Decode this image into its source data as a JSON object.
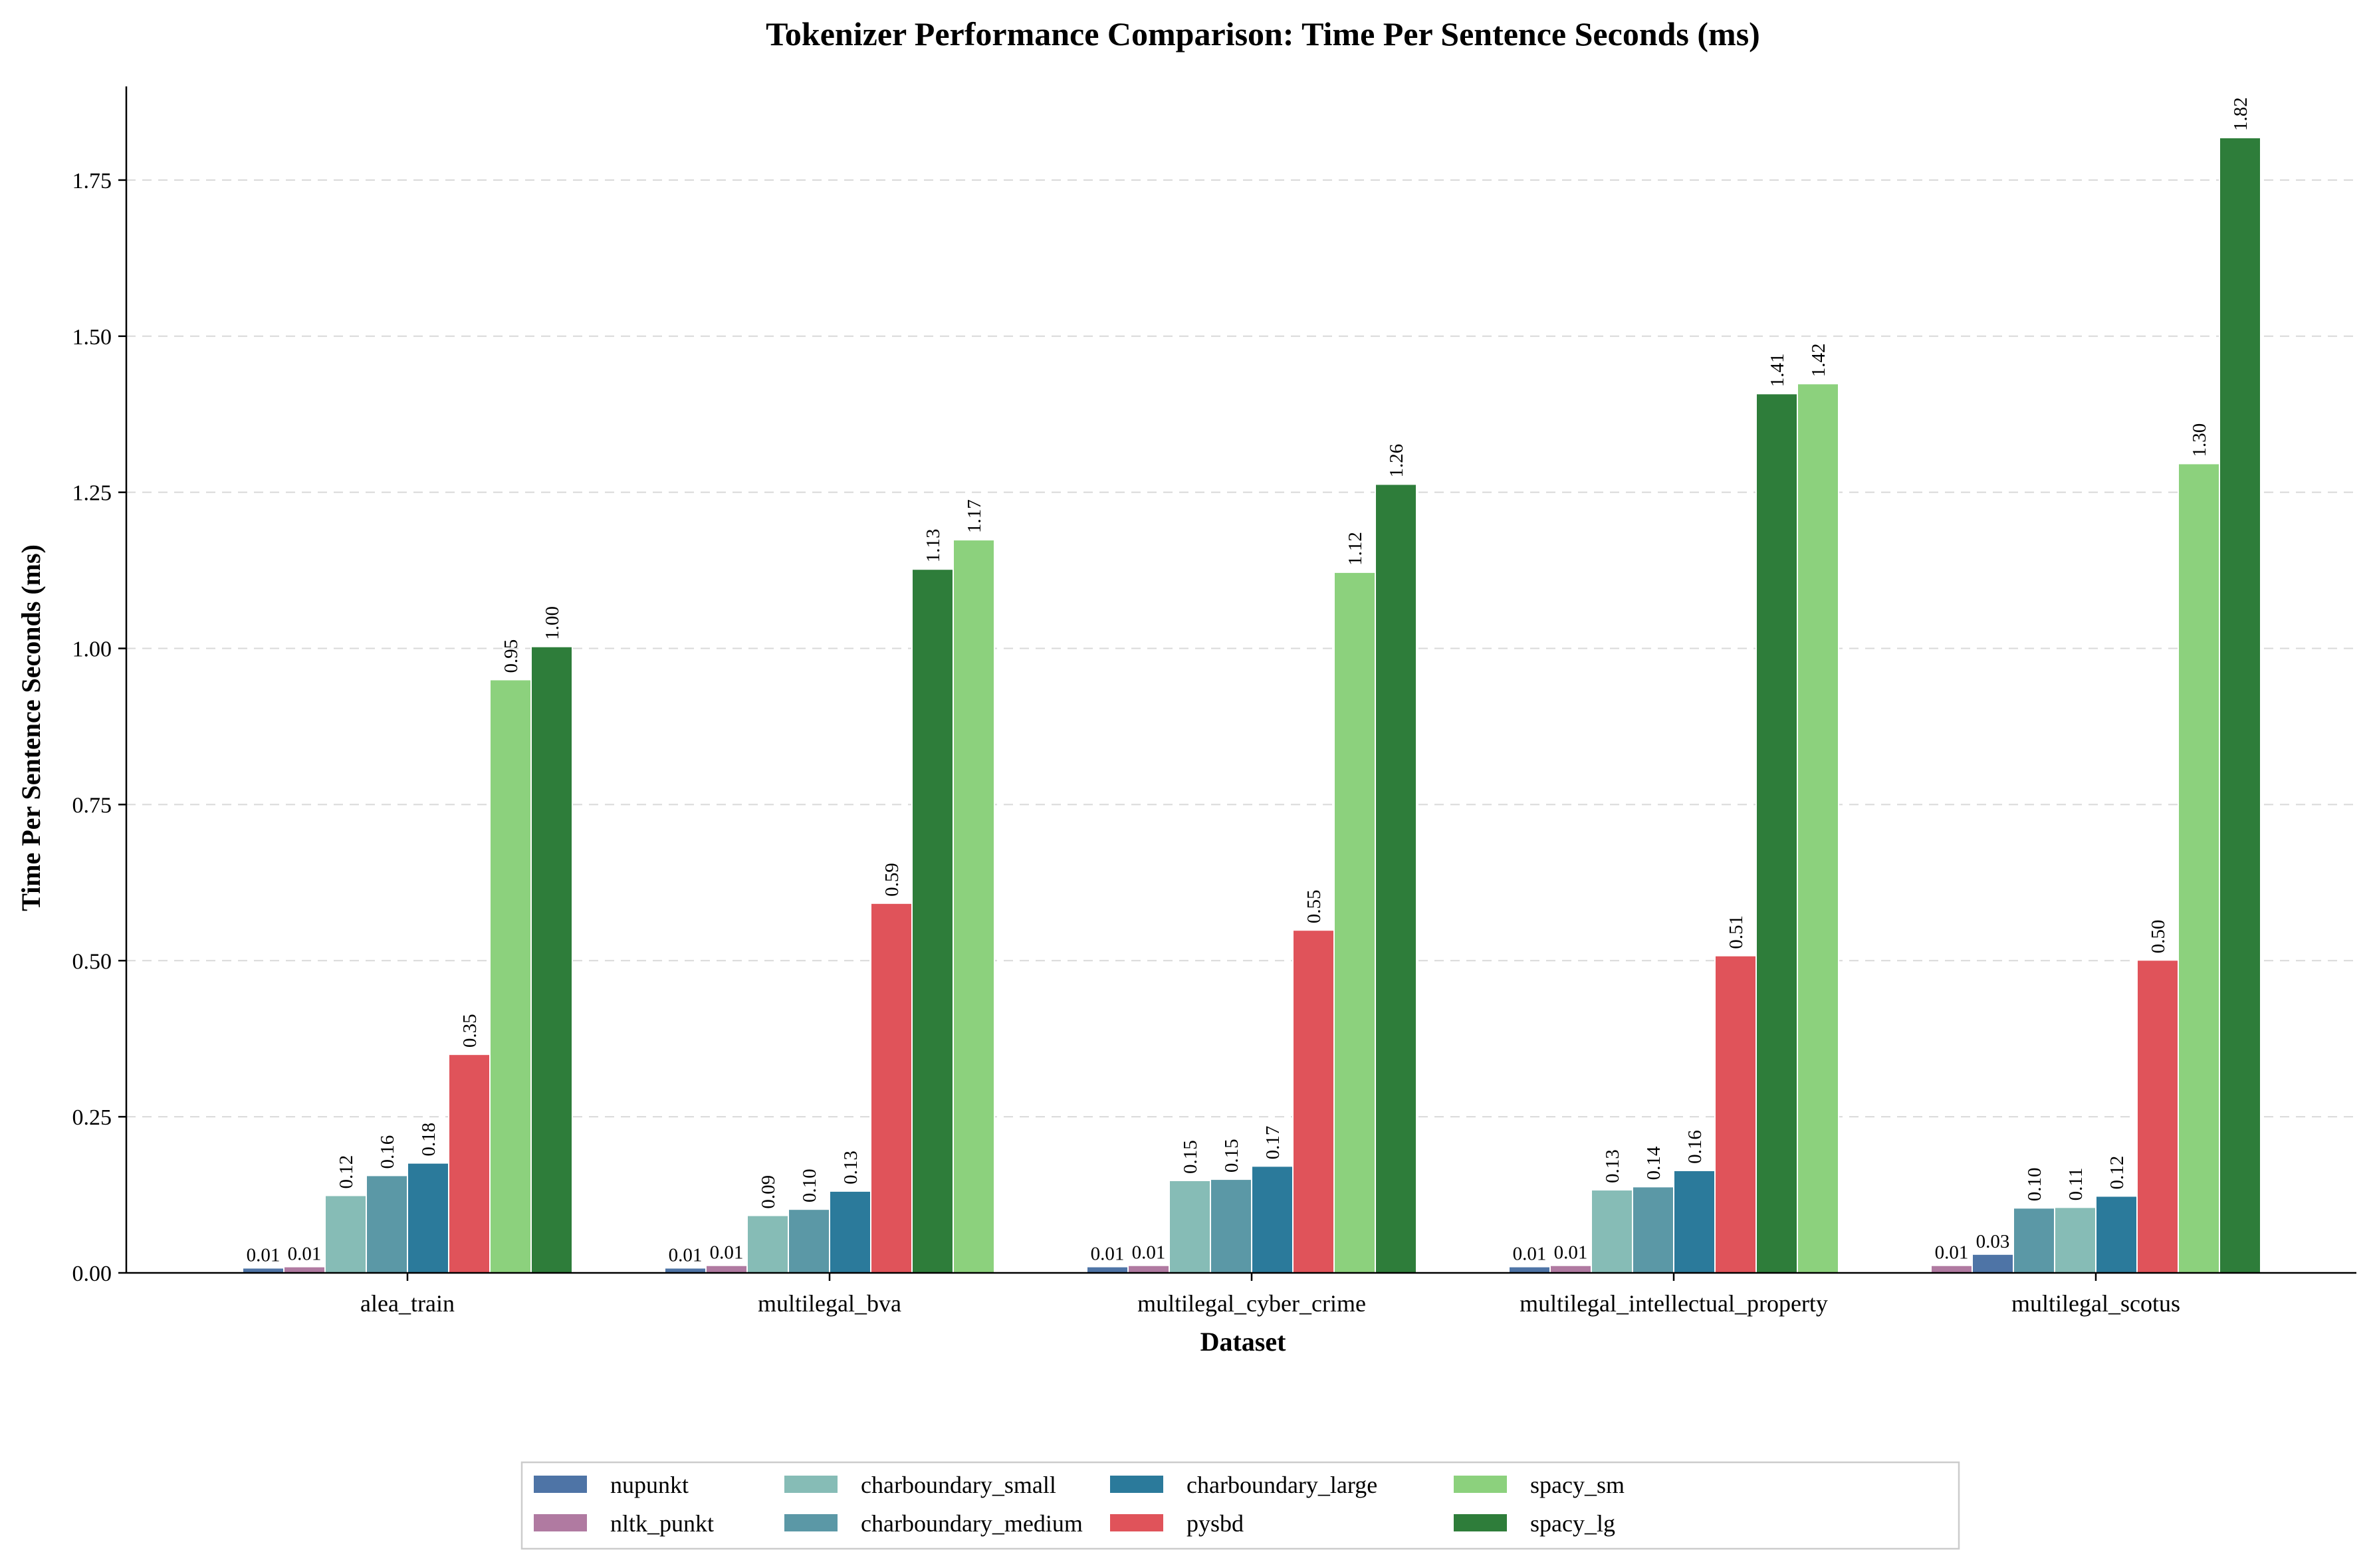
{
  "chart_data": {
    "type": "bar",
    "title": "Tokenizer Performance Comparison: Time Per Sentence Seconds (ms)",
    "xlabel": "Dataset",
    "ylabel": "Time Per Sentence Seconds (ms)",
    "ylim": [
      0,
      1.9
    ],
    "yticks": [
      "0.00",
      "0.25",
      "0.50",
      "0.75",
      "1.00",
      "1.25",
      "1.50",
      "1.75"
    ],
    "grid": "y-dashed",
    "legend_position": "bottom-center",
    "categories": [
      "alea_train",
      "multilegal_bva",
      "multilegal_cyber_crime",
      "multilegal_intellectual_property",
      "multilegal_scotus"
    ],
    "series": [
      {
        "name": "nupunkt",
        "color": "#4e74a6",
        "values": [
          0.008,
          0.008,
          0.01,
          0.01,
          0.03
        ],
        "labels": [
          "0.01",
          "0.01",
          "0.01",
          "0.01",
          "0.03"
        ]
      },
      {
        "name": "nltk_punkt",
        "color": "#b07aa1",
        "values": [
          0.01,
          0.012,
          0.012,
          0.012,
          0.012
        ],
        "labels": [
          "0.01",
          "0.01",
          "0.01",
          "0.01",
          "0.01"
        ]
      },
      {
        "name": "charboundary_small",
        "color": "#86bcb6",
        "values": [
          0.124,
          0.092,
          0.148,
          0.133,
          0.105
        ],
        "labels": [
          "0.12",
          "0.09",
          "0.15",
          "0.13",
          "0.11"
        ]
      },
      {
        "name": "charboundary_medium",
        "color": "#5b98a6",
        "values": [
          0.156,
          0.102,
          0.15,
          0.138,
          0.104
        ],
        "labels": [
          "0.16",
          "0.10",
          "0.15",
          "0.14",
          "0.10"
        ]
      },
      {
        "name": "charboundary_large",
        "color": "#2b7a9b",
        "values": [
          0.176,
          0.131,
          0.171,
          0.164,
          0.123
        ],
        "labels": [
          "0.18",
          "0.13",
          "0.17",
          "0.16",
          "0.12"
        ]
      },
      {
        "name": "pysbd",
        "color": "#e0535a",
        "values": [
          0.35,
          0.592,
          0.549,
          0.508,
          0.501
        ],
        "labels": [
          "0.35",
          "0.59",
          "0.55",
          "0.51",
          "0.50"
        ]
      },
      {
        "name": "spacy_sm",
        "color": "#8cd17d",
        "values": [
          0.95,
          1.174,
          1.122,
          1.424,
          1.296
        ],
        "labels": [
          "0.95",
          "1.17",
          "1.12",
          "1.42",
          "1.30"
        ]
      },
      {
        "name": "spacy_lg",
        "color": "#2e7d3a",
        "values": [
          1.003,
          1.127,
          1.263,
          1.408,
          1.818
        ],
        "labels": [
          "1.00",
          "1.13",
          "1.26",
          "1.41",
          "1.82"
        ]
      }
    ],
    "bar_order": [
      [
        0,
        1,
        2,
        3,
        4,
        5,
        6,
        7
      ],
      [
        0,
        1,
        2,
        3,
        4,
        5,
        7,
        6
      ],
      [
        0,
        1,
        2,
        3,
        4,
        5,
        6,
        7
      ],
      [
        0,
        1,
        2,
        3,
        4,
        5,
        7,
        6
      ],
      [
        1,
        0,
        3,
        2,
        4,
        5,
        6,
        7
      ]
    ],
    "legend_order": [
      0,
      1,
      2,
      3,
      4,
      5,
      6,
      7
    ]
  }
}
